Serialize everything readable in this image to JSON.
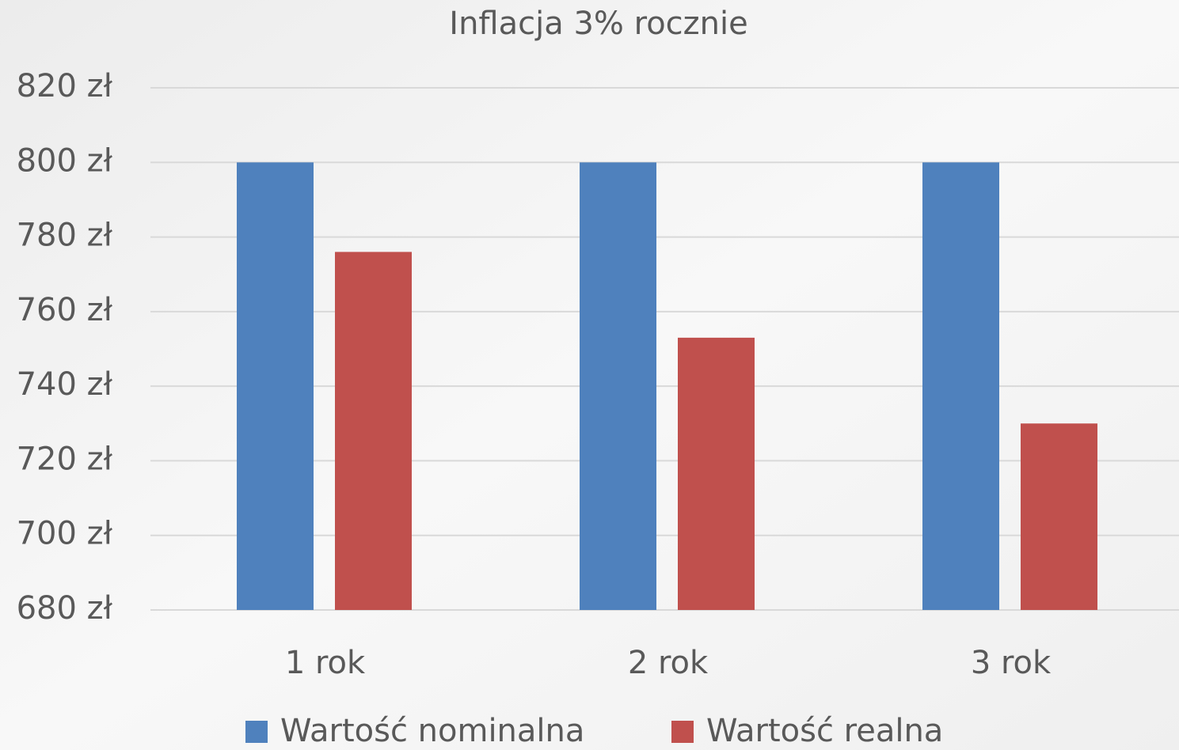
{
  "chart_data": {
    "type": "bar",
    "title": "Inflacja 3% rocznie",
    "categories": [
      "1 rok",
      "2 rok",
      "3 rok"
    ],
    "series": [
      {
        "name": "Wartość nominalna",
        "color": "#4f81bd",
        "values": [
          800,
          800,
          800
        ]
      },
      {
        "name": "Wartość realna",
        "color": "#c0504d",
        "values": [
          776,
          753,
          730
        ]
      }
    ],
    "ylim": [
      680,
      820
    ],
    "yticks": [
      {
        "value": 680,
        "label": "680 zł"
      },
      {
        "value": 700,
        "label": "700 zł"
      },
      {
        "value": 720,
        "label": "720 zł"
      },
      {
        "value": 740,
        "label": "740 zł"
      },
      {
        "value": 760,
        "label": "760 zł"
      },
      {
        "value": 780,
        "label": "780 zł"
      },
      {
        "value": 800,
        "label": "800 zł"
      },
      {
        "value": 820,
        "label": "820 zł"
      }
    ],
    "grid": true,
    "legend": "bottom"
  }
}
